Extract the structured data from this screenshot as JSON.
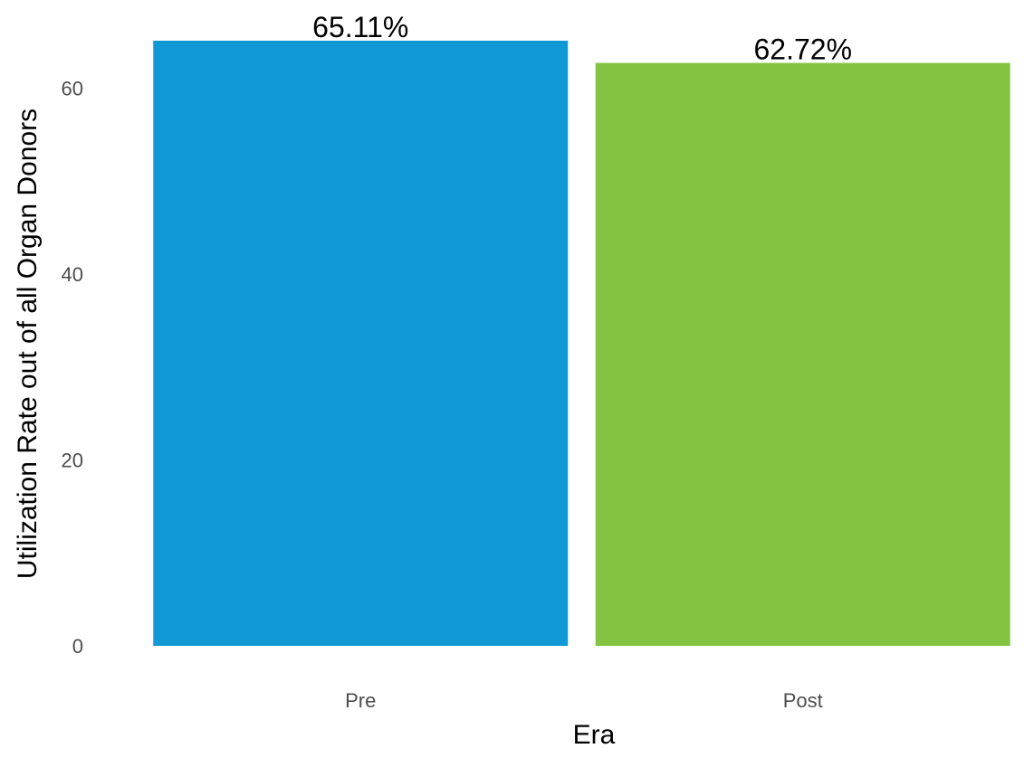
{
  "chart_data": {
    "type": "bar",
    "title": "",
    "xlabel": "Era",
    "ylabel": "Utilization Rate out of all Organ Donors",
    "categories": [
      "Pre",
      "Post"
    ],
    "values": [
      65.11,
      62.72
    ],
    "data_labels": [
      "65.11%",
      "62.72%"
    ],
    "colors": [
      "#1199d6",
      "#84c341"
    ],
    "ylim": [
      0,
      65.11
    ],
    "yticks": [
      0,
      20,
      40,
      60
    ],
    "ytick_labels": [
      "0",
      "20",
      "40",
      "60"
    ],
    "grid": false,
    "legend": "none"
  }
}
